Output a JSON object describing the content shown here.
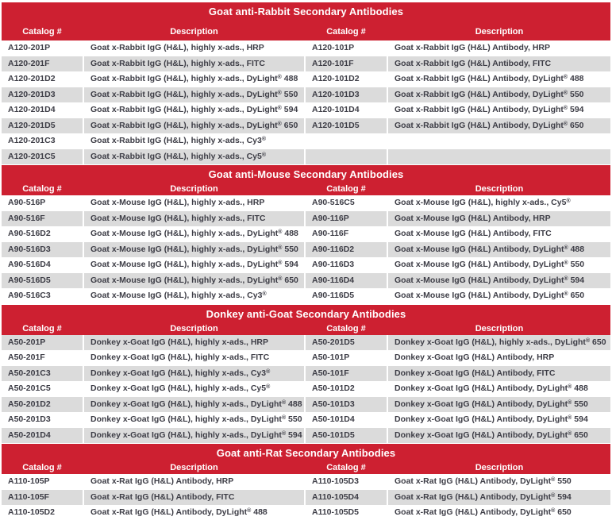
{
  "colors": {
    "header_red": "#cd2031",
    "row_alt_gray": "#dbdbdb",
    "body_text": "#3d3d46",
    "header_text": "#ffffff"
  },
  "column_headers": [
    "Catalog #",
    "Description",
    "Catalog #",
    "Description"
  ],
  "sections": [
    {
      "title": "Goat anti-Rabbit Secondary Antibodies",
      "first_row_shade": "white",
      "rows": [
        [
          "A120-201P",
          "Goat x-Rabbit IgG (H&L), highly x-ads., HRP",
          "A120-101P",
          "Goat x-Rabbit IgG (H&L) Antibody, HRP"
        ],
        [
          "A120-201F",
          "Goat x-Rabbit IgG (H&L), highly x-ads., FITC",
          "A120-101F",
          "Goat x-Rabbit IgG (H&L) Antibody, FITC"
        ],
        [
          "A120-201D2",
          "Goat x-Rabbit IgG (H&L), highly x-ads., DyLight® 488",
          "A120-101D2",
          "Goat x-Rabbit IgG (H&L) Antibody, DyLight® 488"
        ],
        [
          "A120-201D3",
          "Goat x-Rabbit IgG (H&L), highly x-ads., DyLight® 550",
          "A120-101D3",
          "Goat x-Rabbit IgG (H&L) Antibody, DyLight® 550"
        ],
        [
          "A120-201D4",
          "Goat x-Rabbit IgG (H&L), highly x-ads., DyLight® 594",
          "A120-101D4",
          "Goat x-Rabbit IgG (H&L) Antibody, DyLight® 594"
        ],
        [
          "A120-201D5",
          "Goat x-Rabbit IgG (H&L), highly x-ads., DyLight® 650",
          "A120-101D5",
          "Goat x-Rabbit IgG (H&L) Antibody, DyLight® 650"
        ],
        [
          "A120-201C3",
          "Goat x-Rabbit IgG (H&L), highly x-ads., Cy3®",
          "",
          ""
        ],
        [
          "A120-201C5",
          "Goat x-Rabbit IgG (H&L), highly x-ads., Cy5®",
          "",
          ""
        ]
      ]
    },
    {
      "title": "Goat anti-Mouse Secondary Antibodies",
      "first_row_shade": "white",
      "rows": [
        [
          "A90-516P",
          "Goat x-Mouse IgG (H&L), highly x-ads., HRP",
          "A90-516C5",
          "Goat x-Mouse IgG (H&L), highly x-ads., Cy5®"
        ],
        [
          "A90-516F",
          "Goat x-Mouse IgG (H&L), highly x-ads., FITC",
          "A90-116P",
          "Goat x-Mouse IgG (H&L) Antibody, HRP"
        ],
        [
          "A90-516D2",
          "Goat x-Mouse IgG (H&L), highly x-ads., DyLight® 488",
          "A90-116F",
          "Goat x-Mouse IgG (H&L) Antibody, FITC"
        ],
        [
          "A90-516D3",
          "Goat x-Mouse IgG (H&L), highly x-ads., DyLight® 550",
          "A90-116D2",
          "Goat x-Mouse IgG (H&L) Antibody, DyLight® 488"
        ],
        [
          "A90-516D4",
          "Goat x-Mouse IgG (H&L), highly x-ads., DyLight® 594",
          "A90-116D3",
          "Goat x-Mouse IgG (H&L) Antibody, DyLight® 550"
        ],
        [
          "A90-516D5",
          "Goat x-Mouse IgG (H&L), highly x-ads., DyLight® 650",
          "A90-116D4",
          "Goat x-Mouse IgG (H&L) Antibody, DyLight® 594"
        ],
        [
          "A90-516C3",
          "Goat x-Mouse IgG (H&L), highly x-ads., Cy3®",
          "A90-116D5",
          "Goat x-Mouse IgG (H&L) Antibody, DyLight® 650"
        ]
      ]
    },
    {
      "title": "Donkey anti-Goat Secondary Antibodies",
      "first_row_shade": "gray",
      "rows": [
        [
          "A50-201P",
          "Donkey x-Goat IgG (H&L), highly x-ads., HRP",
          "A50-201D5",
          "Donkey x-Goat IgG (H&L), highly x-ads., DyLight® 650"
        ],
        [
          "A50-201F",
          "Donkey x-Goat IgG (H&L), highly x-ads., FITC",
          "A50-101P",
          "Donkey x-Goat IgG (H&L) Antibody, HRP"
        ],
        [
          "A50-201C3",
          "Donkey x-Goat IgG (H&L), highly x-ads., Cy3®",
          "A50-101F",
          "Donkey x-Goat IgG (H&L) Antibody, FITC"
        ],
        [
          "A50-201C5",
          "Donkey x-Goat IgG (H&L), highly x-ads., Cy5®",
          "A50-101D2",
          "Donkey x-Goat IgG (H&L) Antibody, DyLight® 488"
        ],
        [
          "A50-201D2",
          "Donkey x-Goat IgG (H&L), highly x-ads., DyLight® 488",
          "A50-101D3",
          "Donkey x-Goat IgG (H&L) Antibody, DyLight® 550"
        ],
        [
          "A50-201D3",
          "Donkey x-Goat IgG (H&L), highly x-ads., DyLight® 550",
          "A50-101D4",
          "Donkey x-Goat IgG (H&L) Antibody, DyLight® 594"
        ],
        [
          "A50-201D4",
          "Donkey x-Goat IgG (H&L), highly x-ads., DyLight® 594",
          "A50-101D5",
          "Donkey x-Goat IgG (H&L) Antibody, DyLight® 650"
        ]
      ]
    },
    {
      "title": "Goat anti-Rat Secondary Antibodies",
      "first_row_shade": "white",
      "rows": [
        [
          "A110-105P",
          "Goat x-Rat IgG (H&L) Antibody, HRP",
          "A110-105D3",
          "Goat x-Rat IgG (H&L) Antibody, DyLight® 550"
        ],
        [
          "A110-105F",
          "Goat x-Rat IgG (H&L) Antibody, FITC",
          "A110-105D4",
          "Goat x-Rat IgG (H&L) Antibody, DyLight® 594"
        ],
        [
          "A110-105D2",
          "Goat x-Rat IgG (H&L) Antibody, DyLight® 488",
          "A110-105D5",
          "Goat x-Rat IgG (H&L) Antibody, DyLight® 650"
        ]
      ]
    }
  ]
}
